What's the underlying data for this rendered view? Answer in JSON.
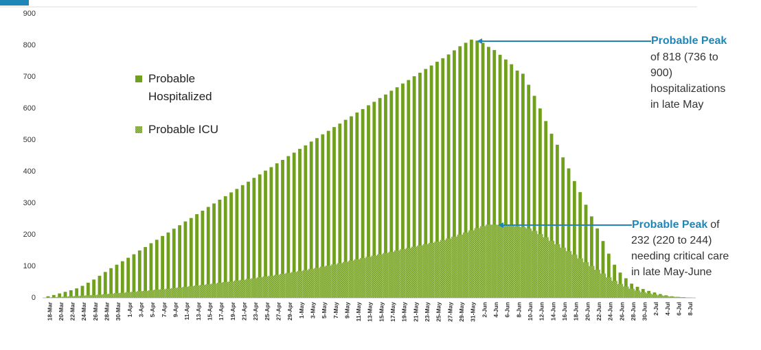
{
  "chart_data": {
    "type": "bar",
    "categories": [
      "18-Mar",
      null,
      "20-Mar",
      null,
      "22-Mar",
      null,
      "24-Mar",
      null,
      "26-Mar",
      null,
      "28-Mar",
      null,
      "30-Mar",
      null,
      "1-Apr",
      null,
      "3-Apr",
      null,
      "5-Apr",
      null,
      "7-Apr",
      null,
      "9-Apr",
      null,
      "11-Apr",
      null,
      "13-Apr",
      null,
      "15-Apr",
      null,
      "17-Apr",
      null,
      "19-Apr",
      null,
      "21-Apr",
      null,
      "23-Apr",
      null,
      "25-Apr",
      null,
      "27-Apr",
      null,
      "29-Apr",
      null,
      "1-May",
      null,
      "3-May",
      null,
      "5-May",
      null,
      "7-May",
      null,
      "9-May",
      null,
      "11-May",
      null,
      "13-May",
      null,
      "15-May",
      null,
      "17-May",
      null,
      "19-May",
      null,
      "21-May",
      null,
      "23-May",
      null,
      "25-May",
      null,
      "27-May",
      null,
      "29-May",
      null,
      "31-May",
      null,
      "2-Jun",
      null,
      "4-Jun",
      null,
      "6-Jun",
      null,
      "8-Jun",
      null,
      "10-Jun",
      null,
      "12-Jun",
      null,
      "14-Jun",
      null,
      "16-Jun",
      null,
      "18-Jun",
      null,
      "20-Jun",
      null,
      "22-Jun",
      null,
      "24-Jun",
      null,
      "26-Jun",
      null,
      "28-Jun",
      null,
      "30-Jun",
      null,
      "2-Jul",
      null,
      "4-Jul",
      null,
      "6-Jul",
      null,
      "8-Jul"
    ],
    "series": [
      {
        "name": "Probable Hospitalized",
        "color": "#70a01e",
        "values": [
          5,
          9,
          14,
          19,
          24,
          30,
          38,
          48,
          58,
          70,
          82,
          94,
          105,
          116,
          127,
          138,
          150,
          161,
          173,
          184,
          196,
          207,
          219,
          230,
          242,
          253,
          265,
          276,
          288,
          299,
          311,
          322,
          334,
          345,
          357,
          368,
          380,
          391,
          403,
          414,
          426,
          437,
          449,
          460,
          472,
          483,
          495,
          506,
          518,
          529,
          541,
          552,
          564,
          575,
          587,
          598,
          610,
          621,
          633,
          644,
          656,
          667,
          679,
          690,
          702,
          713,
          725,
          736,
          748,
          759,
          771,
          784,
          797,
          808,
          818,
          815,
          808,
          795,
          785,
          770,
          755,
          740,
          720,
          710,
          675,
          640,
          600,
          560,
          520,
          485,
          445,
          410,
          370,
          335,
          295,
          258,
          220,
          180,
          140,
          105,
          80,
          62,
          45,
          35,
          28,
          22,
          17,
          12,
          8,
          5,
          3,
          2,
          1
        ]
      },
      {
        "name": "Probable ICU",
        "color": "#a8c46a",
        "values": [
          1,
          2,
          3,
          4,
          5,
          6,
          7,
          8,
          9,
          10,
          12,
          13,
          15,
          16,
          18,
          19,
          21,
          22,
          24,
          26,
          27,
          29,
          31,
          33,
          35,
          37,
          39,
          41,
          43,
          45,
          48,
          50,
          52,
          55,
          57,
          60,
          62,
          65,
          68,
          70,
          73,
          76,
          79,
          82,
          85,
          88,
          92,
          95,
          99,
          102,
          106,
          110,
          114,
          118,
          122,
          126,
          130,
          134,
          138,
          142,
          146,
          150,
          154,
          158,
          162,
          166,
          170,
          174,
          178,
          183,
          188,
          194,
          200,
          207,
          214,
          221,
          227,
          232,
          232,
          231,
          230,
          229,
          227,
          224,
          220,
          212,
          202,
          192,
          181,
          170,
          159,
          148,
          137,
          125,
          113,
          101,
          89,
          77,
          65,
          54,
          44,
          36,
          29,
          23,
          18,
          14,
          11,
          8,
          6,
          4,
          3,
          2,
          1
        ]
      }
    ],
    "ylim": [
      0,
      900
    ],
    "yticks": [
      0,
      100,
      200,
      300,
      400,
      500,
      600,
      700,
      800,
      900
    ],
    "grid": false,
    "annotations": [
      {
        "title": "Probable Peak",
        "lines": [
          "of 818 (736 to",
          "900)",
          "hospitalizations",
          "in late May"
        ]
      },
      {
        "title": "Probable Peak",
        "title_line_rest": "of",
        "lines": [
          "232 (220 to 244)",
          "needing critical care",
          "in late May-June"
        ]
      }
    ]
  }
}
